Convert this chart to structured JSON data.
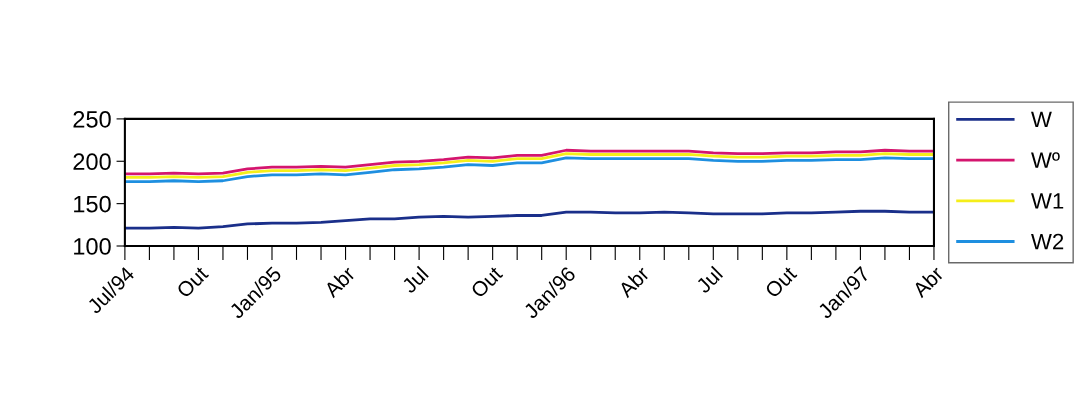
{
  "chart_data": {
    "type": "line",
    "categories": [
      "Jul/94",
      null,
      null,
      "Out",
      null,
      null,
      "Jan/95",
      null,
      null,
      "Abr",
      null,
      null,
      "Jul",
      null,
      null,
      "Out",
      null,
      null,
      "Jan/96",
      null,
      null,
      "Abr",
      null,
      null,
      "Jul",
      null,
      null,
      "Out",
      null,
      null,
      "Jan/97",
      null,
      null,
      "Abr"
    ],
    "series": [
      {
        "name": "W",
        "color": "#1a2f8a",
        "values": [
          121,
          121,
          122,
          121,
          123,
          126,
          127,
          127,
          128,
          130,
          132,
          132,
          134,
          135,
          134,
          135,
          136,
          136,
          140,
          140,
          139,
          139,
          140,
          139,
          138,
          138,
          138,
          139,
          139,
          140,
          141,
          141,
          140,
          140
        ]
      },
      {
        "name": "Wº",
        "color": "#d4156e",
        "values": [
          185,
          185,
          186,
          185,
          186,
          191,
          193,
          193,
          194,
          193,
          196,
          199,
          200,
          202,
          205,
          204,
          207,
          207,
          213,
          212,
          212,
          212,
          212,
          212,
          210,
          209,
          209,
          210,
          210,
          211,
          211,
          213,
          212,
          212
        ]
      },
      {
        "name": "W1",
        "color": "#f5ee1a",
        "values": [
          181,
          181,
          182,
          181,
          182,
          187,
          189,
          189,
          190,
          189,
          192,
          195,
          196,
          198,
          201,
          200,
          203,
          203,
          209,
          208,
          208,
          208,
          208,
          208,
          206,
          205,
          205,
          206,
          206,
          207,
          207,
          209,
          208,
          208
        ]
      },
      {
        "name": "W2",
        "color": "#1e8fe0",
        "values": [
          176,
          176,
          177,
          176,
          177,
          182,
          184,
          184,
          185,
          184,
          187,
          190,
          191,
          193,
          196,
          195,
          198,
          198,
          204,
          203,
          203,
          203,
          203,
          203,
          201,
          200,
          200,
          201,
          201,
          202,
          202,
          204,
          203,
          203
        ]
      }
    ],
    "ylim": [
      100,
      250
    ],
    "yticks": [
      100,
      150,
      200,
      250
    ],
    "grid": false,
    "legend": "right",
    "marker": "none",
    "line_style": "solid"
  }
}
